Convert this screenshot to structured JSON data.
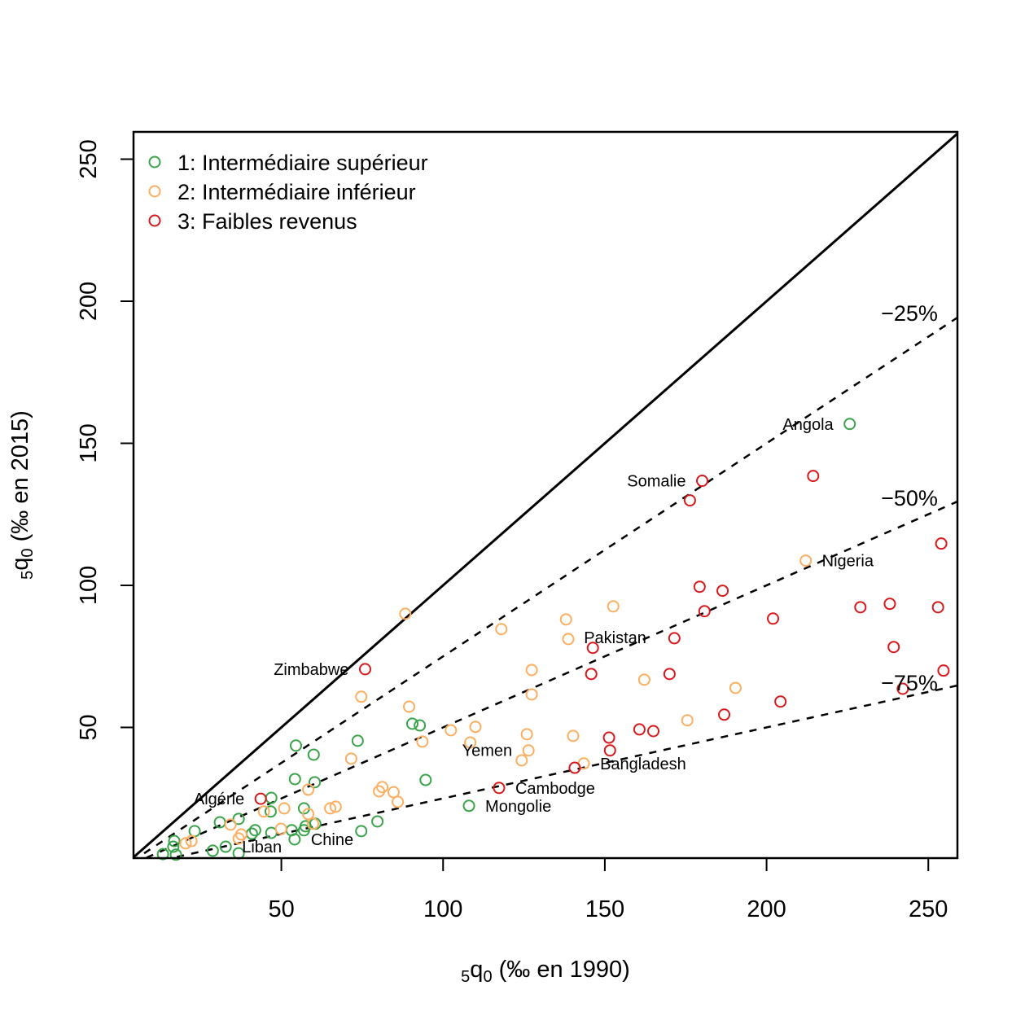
{
  "chart_data": {
    "type": "scatter",
    "title": "",
    "xlabel": {
      "sub_left": "5",
      "main": "q",
      "sub": "0",
      "rest": " (‰ en 1990)"
    },
    "ylabel": {
      "sub_left": "5",
      "main": "q",
      "sub": "0",
      "rest": " (‰ en 2015)"
    },
    "xlim": [
      4.3,
      259
    ],
    "ylim": [
      4,
      259.6
    ],
    "xticks": [
      50,
      100,
      150,
      200,
      250
    ],
    "yticks": [
      50,
      100,
      150,
      200,
      250
    ],
    "grid": false,
    "legend_placement": "top-left",
    "reference_lines": [
      {
        "slope": 1,
        "style": "solid",
        "label": ""
      },
      {
        "slope": 0.75,
        "style": "dashed",
        "label": "−25%"
      },
      {
        "slope": 0.5,
        "style": "dashed",
        "label": "−50%"
      },
      {
        "slope": 0.25,
        "style": "dashed",
        "label": "−75%"
      }
    ],
    "series": [
      {
        "name": "1: Intermédiaire supérieur",
        "color": "#3aa34a",
        "marker": "open-circle",
        "points": [
          [
            225.7,
            156.8
          ],
          [
            54.5,
            43.6
          ],
          [
            60,
            40.4
          ],
          [
            73.6,
            45.3
          ],
          [
            90.5,
            51.3
          ],
          [
            92.8,
            50.7
          ],
          [
            54.2,
            31.8
          ],
          [
            60.3,
            30.7
          ],
          [
            94.6,
            31.5
          ],
          [
            108,
            22.4
          ],
          [
            46.9,
            25.2
          ],
          [
            46.7,
            20.4
          ],
          [
            57,
            21.5
          ],
          [
            36.8,
            17.8
          ],
          [
            31,
            16.6
          ],
          [
            23.2,
            13.5
          ],
          [
            41.9,
            13.8
          ],
          [
            40.9,
            12.6
          ],
          [
            46.9,
            12.9
          ],
          [
            53.2,
            13.8
          ],
          [
            57.5,
            15.2
          ],
          [
            57,
            13.8
          ],
          [
            54.1,
            10.6
          ],
          [
            60.5,
            16.1
          ],
          [
            74.7,
            13.5
          ],
          [
            79.7,
            16.9
          ],
          [
            32.8,
            8.0
          ],
          [
            28.8,
            6.6
          ],
          [
            36.8,
            5.7
          ],
          [
            16.9,
            10.0
          ],
          [
            16.6,
            8.0
          ],
          [
            13.4,
            5.4
          ],
          [
            17.4,
            5.2
          ]
        ]
      },
      {
        "name": "2: Intermédiaire inférieur",
        "color": "#fdae61",
        "marker": "open-circle",
        "points": [
          [
            88.3,
            90.0
          ],
          [
            118,
            84.6
          ],
          [
            138,
            88.0
          ],
          [
            138.7,
            81.1
          ],
          [
            152.6,
            92.6
          ],
          [
            212.1,
            108.7
          ],
          [
            127.4,
            70.2
          ],
          [
            127.4,
            61.6
          ],
          [
            162.2,
            66.8
          ],
          [
            175.5,
            52.5
          ],
          [
            190.4,
            63.9
          ],
          [
            74.7,
            60.8
          ],
          [
            89.5,
            57.3
          ],
          [
            110,
            50.2
          ],
          [
            102.4,
            49.0
          ],
          [
            93.6,
            45.0
          ],
          [
            108.4,
            44.7
          ],
          [
            125.9,
            47.6
          ],
          [
            126.4,
            41.9
          ],
          [
            124.3,
            38.4
          ],
          [
            140.2,
            47.0
          ],
          [
            143.5,
            37.3
          ],
          [
            71.6,
            39.0
          ],
          [
            58.3,
            28.1
          ],
          [
            50.9,
            21.5
          ],
          [
            80.2,
            27.5
          ],
          [
            81.2,
            29.0
          ],
          [
            84.7,
            27.2
          ],
          [
            86,
            23.8
          ],
          [
            65.1,
            21.5
          ],
          [
            66.8,
            22.1
          ],
          [
            44.6,
            20.4
          ],
          [
            58.3,
            19.5
          ],
          [
            59.8,
            16.1
          ],
          [
            49.9,
            14.3
          ],
          [
            37.6,
            12.3
          ],
          [
            36.8,
            10.9
          ],
          [
            34.3,
            15.8
          ],
          [
            22.2,
            10.0
          ],
          [
            20.4,
            9.2
          ]
        ]
      },
      {
        "name": "3: Faibles revenus",
        "color": "#d7191c",
        "marker": "open-circle",
        "points": [
          [
            75.9,
            70.5
          ],
          [
            180.1,
            136.8
          ],
          [
            176.3,
            129.9
          ],
          [
            214.4,
            138.5
          ],
          [
            254,
            114.7
          ],
          [
            179.3,
            99.5
          ],
          [
            186.4,
            98.1
          ],
          [
            180.8,
            90.9
          ],
          [
            202,
            88.3
          ],
          [
            229,
            92.3
          ],
          [
            238.1,
            93.5
          ],
          [
            253,
            92.3
          ],
          [
            239.3,
            78.3
          ],
          [
            254.7,
            70
          ],
          [
            242.1,
            63.6
          ],
          [
            146.3,
            78
          ],
          [
            171.5,
            81.4
          ],
          [
            170,
            68.8
          ],
          [
            145.8,
            68.8
          ],
          [
            204.3,
            59.1
          ],
          [
            186.9,
            54.5
          ],
          [
            160.7,
            49.3
          ],
          [
            165,
            48.7
          ],
          [
            151.3,
            46.4
          ],
          [
            151.6,
            41.9
          ],
          [
            140.7,
            35.8
          ],
          [
            117.3,
            28.7
          ],
          [
            43.6,
            24.9
          ]
        ]
      }
    ],
    "annotations": [
      {
        "text": "Angola",
        "x": 225.7,
        "y": 156.8
      },
      {
        "text": "Somalie",
        "x": 180.1,
        "y": 136.8
      },
      {
        "text": "Nigeria",
        "x": 212.1,
        "y": 108.7
      },
      {
        "text": "Pakistan",
        "x": 146.3,
        "y": 78
      },
      {
        "text": "Zimbabwe",
        "x": 75.9,
        "y": 70.5
      },
      {
        "text": "Yemen",
        "x": 126.4,
        "y": 41.9
      },
      {
        "text": "Bangladesh",
        "x": 143.5,
        "y": 37.3
      },
      {
        "text": "Cambodge",
        "x": 117.3,
        "y": 28.7
      },
      {
        "text": "Mongolie",
        "x": 108,
        "y": 22.4
      },
      {
        "text": "Algérie",
        "x": 43.6,
        "y": 24.9
      },
      {
        "text": "Liban",
        "x": 32.8,
        "y": 8.0
      },
      {
        "text": "Chine",
        "x": 54.1,
        "y": 10.6
      }
    ]
  }
}
